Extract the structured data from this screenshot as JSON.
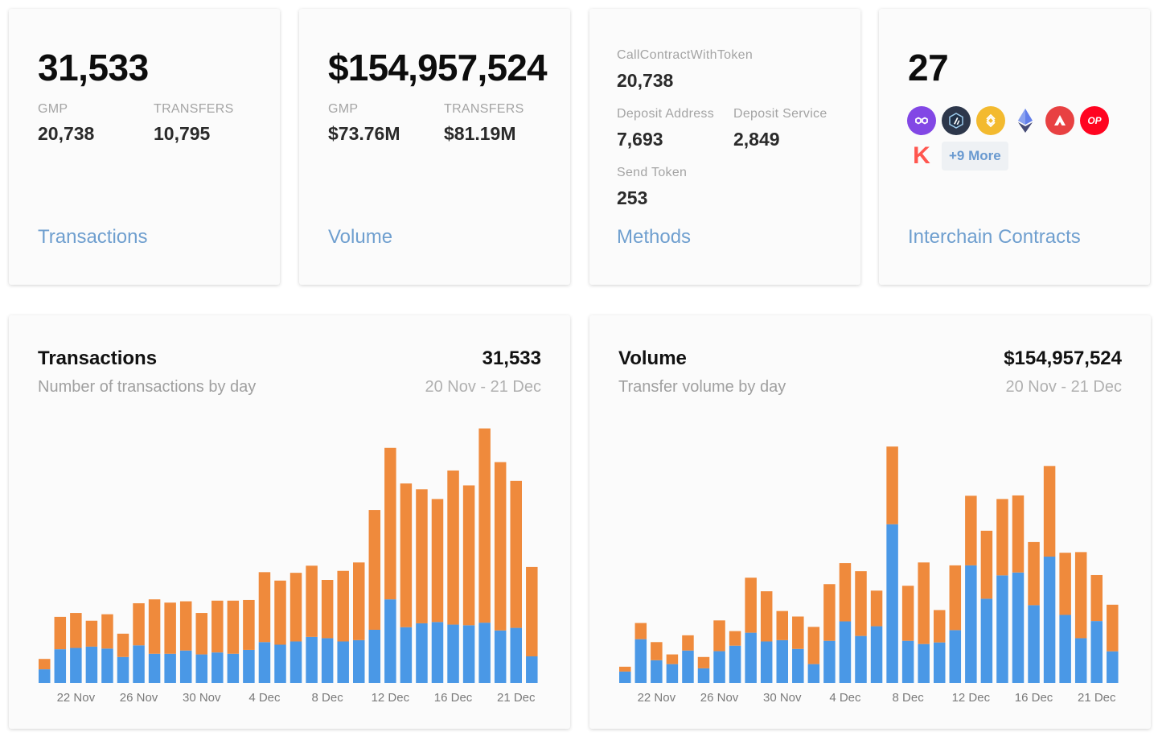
{
  "colors": {
    "gmp": "#ef8a3c",
    "transfers": "#4a98e6",
    "link": "#6f9fcf"
  },
  "stats": {
    "transactions": {
      "total": "31,533",
      "gmp_label": "GMP",
      "gmp_value": "20,738",
      "transfers_label": "TRANSFERS",
      "transfers_value": "10,795",
      "link": "Transactions"
    },
    "volume": {
      "total": "$154,957,524",
      "gmp_label": "GMP",
      "gmp_value": "$73.76M",
      "transfers_label": "TRANSFERS",
      "transfers_value": "$81.19M",
      "link": "Volume"
    },
    "methods": {
      "m1_label": "CallContractWithToken",
      "m1_value": "20,738",
      "m2_label": "Deposit Address",
      "m2_value": "7,693",
      "m3_label": "Deposit Service",
      "m3_value": "2,849",
      "m4_label": "Send Token",
      "m4_value": "253",
      "link": "Methods"
    },
    "contracts": {
      "total": "27",
      "chains": [
        {
          "name": "polygon-icon",
          "color": "#8247e5"
        },
        {
          "name": "arbitrum-icon",
          "color": "#2d374b"
        },
        {
          "name": "binance-icon",
          "color": "#f3ba2f"
        },
        {
          "name": "ethereum-icon",
          "color": "#627eea"
        },
        {
          "name": "avalanche-icon",
          "color": "#e84142"
        },
        {
          "name": "optimism-icon",
          "color": "#ff0420",
          "text": "OP"
        },
        {
          "name": "kava-icon",
          "color": "#ff564f",
          "text": "K"
        }
      ],
      "more": "+9 More",
      "link": "Interchain Contracts"
    }
  },
  "chart_data": [
    {
      "type": "bar",
      "stacked": true,
      "title": "Transactions",
      "total": "31,533",
      "subtitle": "Number of transactions by day",
      "range": "20 Nov - 21 Dec",
      "tick_labels": [
        "22 Nov",
        "26 Nov",
        "30 Nov",
        "4 Dec",
        "8 Dec",
        "12 Dec",
        "16 Dec",
        "21 Dec"
      ],
      "tick_indices": [
        2,
        6,
        10,
        14,
        18,
        22,
        26,
        30
      ],
      "ylim": [
        0,
        2000
      ],
      "series": [
        {
          "name": "Transfers",
          "color": "#4a98e6",
          "values": [
            105,
            260,
            270,
            280,
            265,
            200,
            290,
            225,
            225,
            250,
            220,
            235,
            225,
            255,
            315,
            295,
            320,
            355,
            345,
            320,
            330,
            410,
            645,
            430,
            460,
            470,
            450,
            445,
            465,
            405,
            425,
            205
          ]
        },
        {
          "name": "GMP",
          "color": "#ef8a3c",
          "values": [
            80,
            250,
            270,
            200,
            265,
            180,
            325,
            420,
            395,
            380,
            320,
            400,
            410,
            385,
            540,
            495,
            530,
            550,
            450,
            545,
            600,
            925,
            1170,
            1110,
            1035,
            950,
            1190,
            1080,
            1500,
            1300,
            1135,
            690
          ]
        }
      ]
    },
    {
      "type": "bar",
      "stacked": true,
      "title": "Volume",
      "total": "$154,957,524",
      "subtitle": "Transfer volume by day",
      "range": "20 Nov - 21 Dec",
      "tick_labels": [
        "22 Nov",
        "26 Nov",
        "30 Nov",
        "4 Dec",
        "8 Dec",
        "12 Dec",
        "16 Dec",
        "21 Dec"
      ],
      "tick_indices": [
        2,
        6,
        10,
        14,
        18,
        22,
        26,
        30
      ],
      "ylim": [
        0,
        8000000
      ],
      "series": [
        {
          "name": "Transfers",
          "color": "#4a98e6",
          "values": [
            350000,
            1350000,
            700000,
            580000,
            1000000,
            450000,
            980000,
            1150000,
            1550000,
            1280000,
            1320000,
            1050000,
            580000,
            1300000,
            1900000,
            1450000,
            1750000,
            4900000,
            1300000,
            1200000,
            1250000,
            1630000,
            3630000,
            2600000,
            3320000,
            3410000,
            2400000,
            3900000,
            2100000,
            1380000,
            1910000,
            975000
          ]
        },
        {
          "name": "GMP",
          "color": "#ef8a3c",
          "values": [
            150000,
            500000,
            560000,
            300000,
            470000,
            350000,
            950000,
            450000,
            1700000,
            1550000,
            900000,
            1000000,
            1150000,
            1750000,
            1800000,
            2000000,
            1100000,
            2400000,
            1700000,
            2520000,
            1000000,
            2000000,
            2150000,
            2100000,
            2360000,
            2380000,
            1950000,
            2800000,
            1920000,
            2660000,
            1420000,
            1440000
          ]
        }
      ]
    }
  ]
}
